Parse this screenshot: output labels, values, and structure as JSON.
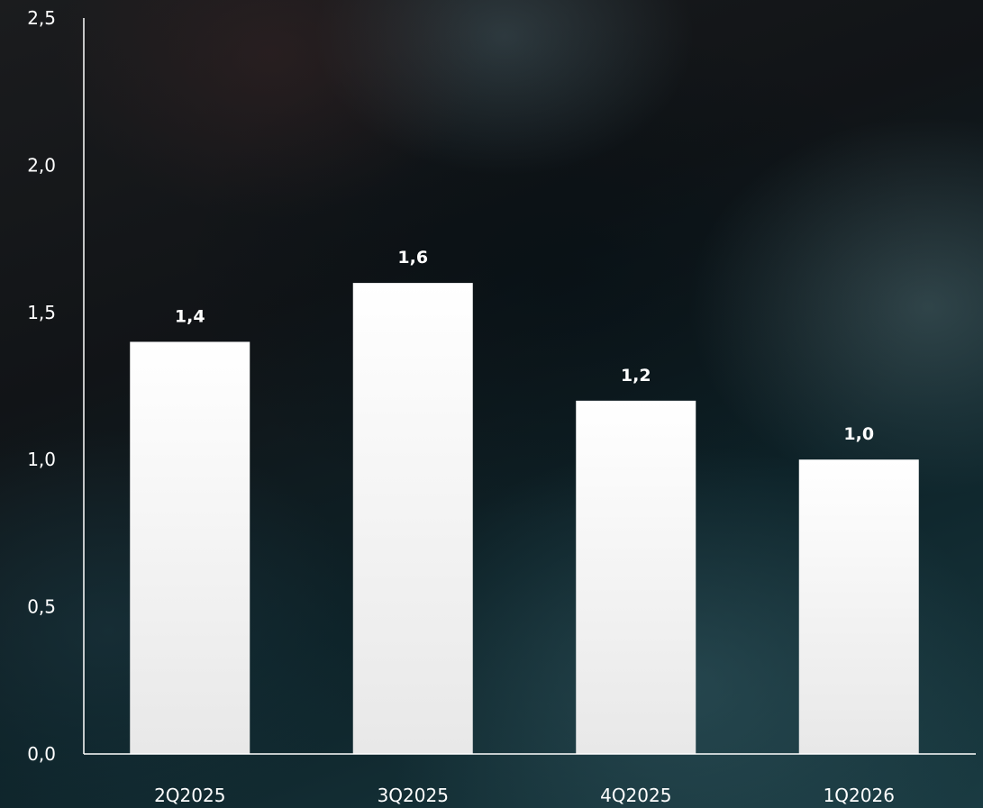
{
  "chart_data": {
    "type": "bar",
    "categories": [
      "2Q2025",
      "3Q2025",
      "4Q2025",
      "1Q2026"
    ],
    "values": [
      1.4,
      1.6,
      1.2,
      1.0
    ],
    "value_labels": [
      "1,4",
      "1,6",
      "1,2",
      "1,0"
    ],
    "ylim": [
      0,
      2.5
    ],
    "yticks": [
      0,
      0.5,
      1.0,
      1.5,
      2.0,
      2.5
    ],
    "ytick_labels": [
      "0,0",
      "0,5",
      "1,0",
      "1,5",
      "2,0",
      "2,5"
    ],
    "title": "",
    "xlabel": "",
    "ylabel": "",
    "grid": false,
    "colors": {
      "bar_top": "#ffffff",
      "bar_bottom": "#e8e8e8",
      "text": "#ffffff",
      "axis": "#ffffff"
    }
  }
}
